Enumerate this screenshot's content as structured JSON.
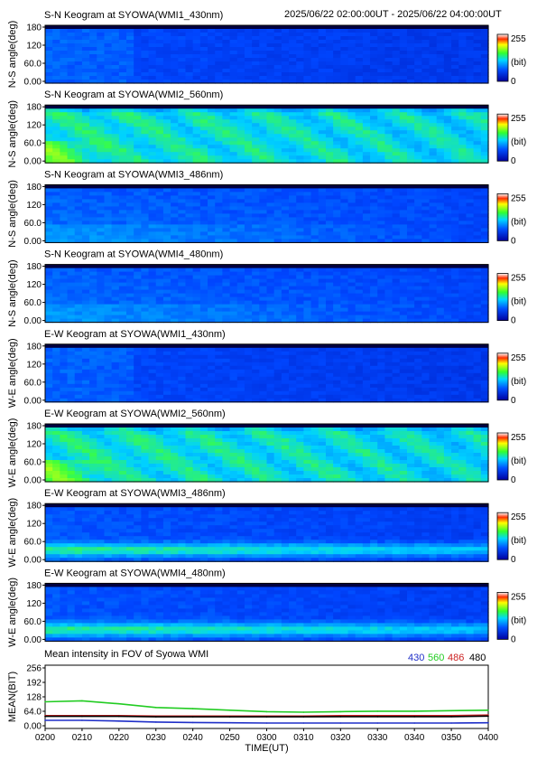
{
  "header_time_range": "2025/06/22 02:00:00UT - 2025/06/22 04:00:00UT",
  "panels": [
    {
      "title": "S-N Keogram at SYOWA(WMI1_430nm)",
      "ylabel": "N-S angle(deg)",
      "ticks": [
        "180",
        "120",
        "60.0",
        "0.00"
      ],
      "scale_max": "255",
      "scale_unit": "(bit)",
      "scale_min": "0",
      "style": "blue"
    },
    {
      "title": "S-N Keogram at SYOWA(WMI2_560nm)",
      "ylabel": "N-S angle(deg)",
      "ticks": [
        "180",
        "120",
        "60.0",
        "0.00"
      ],
      "scale_max": "255",
      "scale_unit": "(bit)",
      "scale_min": "0",
      "style": "green"
    },
    {
      "title": "S-N Keogram at SYOWA(WMI3_486nm)",
      "ylabel": "N-S angle(deg)",
      "ticks": [
        "180",
        "120",
        "60.0",
        "0.00"
      ],
      "scale_max": "255",
      "scale_unit": "(bit)",
      "scale_min": "0",
      "style": "mixed"
    },
    {
      "title": "S-N Keogram at SYOWA(WMI4_480nm)",
      "ylabel": "N-S angle(deg)",
      "ticks": [
        "180",
        "120",
        "60.0",
        "0.00"
      ],
      "scale_max": "255",
      "scale_unit": "(bit)",
      "scale_min": "0",
      "style": "mixed"
    },
    {
      "title": "E-W Keogram at SYOWA(WMI1_430nm)",
      "ylabel": "W-E angle(deg)",
      "ticks": [
        "180",
        "120",
        "60.0",
        "0.00"
      ],
      "scale_max": "255",
      "scale_unit": "(bit)",
      "scale_min": "0",
      "style": "blue"
    },
    {
      "title": "E-W Keogram at SYOWA(WMI2_560nm)",
      "ylabel": "W-E angle(deg)",
      "ticks": [
        "180",
        "120",
        "60.0",
        "0.00"
      ],
      "scale_max": "255",
      "scale_unit": "(bit)",
      "scale_min": "0",
      "style": "green"
    },
    {
      "title": "E-W Keogram at SYOWA(WMI3_486nm)",
      "ylabel": "W-E angle(deg)",
      "ticks": [
        "180",
        "120",
        "60.0",
        "0.00"
      ],
      "scale_max": "255",
      "scale_unit": "(bit)",
      "scale_min": "0",
      "style": "band"
    },
    {
      "title": "E-W Keogram at SYOWA(WMI4_480nm)",
      "ylabel": "W-E angle(deg)",
      "ticks": [
        "180",
        "120",
        "60.0",
        "0.00"
      ],
      "scale_max": "255",
      "scale_unit": "(bit)",
      "scale_min": "0",
      "style": "band"
    }
  ],
  "chart_data": {
    "type": "line",
    "title": "Mean intensity in FOV of Syowa WMI",
    "xlabel": "TIME(UT)",
    "ylabel": "MEAN(BIT)",
    "ylim": [
      0,
      256
    ],
    "xlim": [
      "0200",
      "0400"
    ],
    "x_ticks": [
      "0200",
      "0210",
      "0220",
      "0230",
      "0240",
      "0250",
      "0300",
      "0310",
      "0320",
      "0330",
      "0340",
      "0350",
      "0400"
    ],
    "y_ticks": [
      "256",
      "192",
      "128",
      "64.0",
      "0.00"
    ],
    "x": [
      "0200",
      "0210",
      "0220",
      "0230",
      "0240",
      "0250",
      "0300",
      "0310",
      "0320",
      "0330",
      "0340",
      "0350",
      "0400"
    ],
    "series": [
      {
        "name": "430",
        "color": "#1f2fc8",
        "values": [
          33,
          33,
          30,
          26,
          24,
          23,
          22,
          22,
          22,
          22,
          22,
          22,
          23
        ]
      },
      {
        "name": "560",
        "color": "#22cc22",
        "values": [
          108,
          112,
          100,
          85,
          80,
          74,
          68,
          66,
          68,
          70,
          70,
          72,
          74
        ]
      },
      {
        "name": "486",
        "color": "#cc2222",
        "values": [
          52,
          52,
          52,
          50,
          50,
          50,
          50,
          50,
          52,
          52,
          52,
          52,
          54
        ]
      },
      {
        "name": "480",
        "color": "#000000",
        "values": [
          49,
          49,
          49,
          47,
          47,
          47,
          47,
          47,
          48,
          48,
          48,
          48,
          50
        ]
      }
    ]
  }
}
